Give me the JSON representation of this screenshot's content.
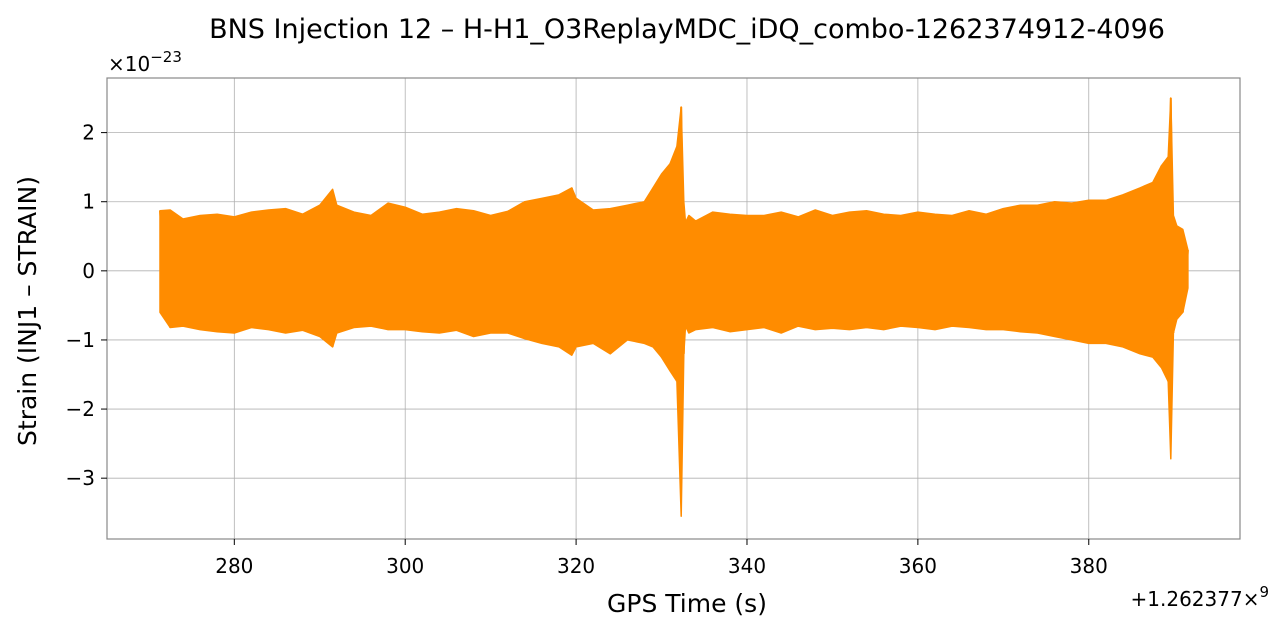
{
  "chart_data": {
    "type": "line",
    "title": "BNS Injection 12 – H-H1_O3ReplayMDC_iDQ_combo-1262374912-4096",
    "xlabel": "GPS Time (s)",
    "ylabel": "Strain (INJ1 – STRAIN)",
    "x_offset_label": "+1.262377×",
    "x_offset_exp": "9",
    "y_scale_label": "×10",
    "y_scale_exp": "−23",
    "xlim": [
      265.1,
      397.7
    ],
    "ylim": [
      -3.88,
      2.79
    ],
    "x_ticks": [
      280,
      300,
      320,
      340,
      360,
      380
    ],
    "x_tick_labels": [
      "280",
      "300",
      "320",
      "340",
      "360",
      "380"
    ],
    "y_ticks": [
      2,
      1,
      0,
      -1,
      -2,
      -3
    ],
    "y_tick_labels": [
      "2",
      "1",
      "0",
      "−1",
      "−2",
      "−3"
    ],
    "grid": true,
    "series_color": "#ff8c00",
    "series": [
      {
        "x": [
          271.3,
          272.5,
          274,
          276,
          278,
          280,
          282,
          284,
          286,
          288,
          290,
          291.5,
          292,
          294,
          296,
          298,
          300,
          302,
          304,
          306,
          308,
          310,
          312,
          314,
          316,
          318,
          319.5,
          320,
          322,
          324,
          326,
          328,
          329,
          330,
          331,
          331.8,
          332.3,
          332.6,
          332.8,
          333.2,
          334,
          336,
          338,
          340,
          342,
          344,
          346,
          348,
          350,
          352,
          354,
          356,
          358,
          360,
          362,
          364,
          366,
          368,
          370,
          372,
          374,
          376,
          378,
          380,
          382,
          384,
          386,
          387.5,
          388.5,
          389.3,
          389.6,
          389.9,
          390.3,
          391,
          391.6
        ],
        "y_upper": [
          0.87,
          0.88,
          0.75,
          0.8,
          0.82,
          0.78,
          0.85,
          0.88,
          0.9,
          0.82,
          0.95,
          1.18,
          0.95,
          0.85,
          0.8,
          0.98,
          0.92,
          0.82,
          0.85,
          0.9,
          0.87,
          0.8,
          0.86,
          1.0,
          1.05,
          1.1,
          1.2,
          1.05,
          0.88,
          0.9,
          0.95,
          1.0,
          1.2,
          1.4,
          1.55,
          1.8,
          2.37,
          1.0,
          0.7,
          0.8,
          0.72,
          0.85,
          0.82,
          0.8,
          0.8,
          0.85,
          0.78,
          0.88,
          0.8,
          0.85,
          0.87,
          0.82,
          0.8,
          0.85,
          0.82,
          0.8,
          0.87,
          0.82,
          0.9,
          0.95,
          0.95,
          1.0,
          0.98,
          1.02,
          1.02,
          1.1,
          1.2,
          1.28,
          1.52,
          1.65,
          2.5,
          0.8,
          0.65,
          0.6,
          0.3
        ],
        "y_lower": [
          -0.6,
          -0.82,
          -0.8,
          -0.85,
          -0.88,
          -0.9,
          -0.82,
          -0.85,
          -0.9,
          -0.86,
          -0.95,
          -1.1,
          -0.9,
          -0.82,
          -0.8,
          -0.85,
          -0.85,
          -0.88,
          -0.9,
          -0.86,
          -0.95,
          -0.9,
          -0.9,
          -0.98,
          -1.05,
          -1.1,
          -1.22,
          -1.1,
          -1.05,
          -1.2,
          -1.0,
          -1.05,
          -1.1,
          -1.25,
          -1.45,
          -1.6,
          -3.55,
          -1.2,
          -0.8,
          -0.9,
          -0.85,
          -0.82,
          -0.88,
          -0.85,
          -0.82,
          -0.9,
          -0.8,
          -0.85,
          -0.83,
          -0.85,
          -0.82,
          -0.85,
          -0.8,
          -0.82,
          -0.85,
          -0.8,
          -0.82,
          -0.85,
          -0.85,
          -0.88,
          -0.9,
          -0.95,
          -1.0,
          -1.05,
          -1.05,
          -1.1,
          -1.2,
          -1.25,
          -1.4,
          -1.6,
          -2.72,
          -0.9,
          -0.7,
          -0.6,
          -0.25
        ]
      }
    ]
  }
}
